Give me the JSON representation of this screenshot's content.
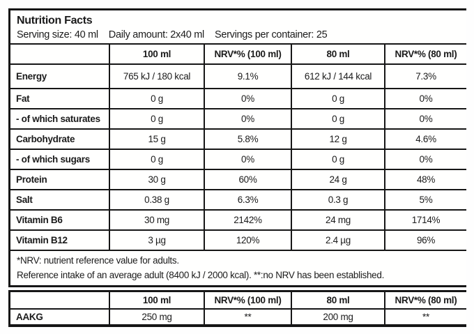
{
  "header": {
    "title": "Nutrition Facts",
    "serving_size": "Serving size: 40 ml",
    "daily_amount": "Daily amount: 2x40 ml",
    "servings_per_container": "Servings per container: 25"
  },
  "main_table": {
    "columns": [
      "",
      "100 ml",
      "NRV*% (100 ml)",
      "80 ml",
      "NRV*% (80 ml)"
    ],
    "rows": [
      {
        "label": "Energy",
        "values": [
          "765 kJ / 180 kcal",
          "9.1%",
          "612 kJ / 144 kcal",
          "7.3%"
        ]
      },
      {
        "label": "Fat",
        "values": [
          "0 g",
          "0%",
          "0 g",
          "0%"
        ]
      },
      {
        "label": "- of which saturates",
        "values": [
          "0 g",
          "0%",
          "0 g",
          "0%"
        ]
      },
      {
        "label": "Carbohydrate",
        "values": [
          "15 g",
          "5.8%",
          "12 g",
          "4.6%"
        ]
      },
      {
        "label": "- of which sugars",
        "values": [
          "0 g",
          "0%",
          "0 g",
          "0%"
        ]
      },
      {
        "label": "Protein",
        "values": [
          "30 g",
          "60%",
          "24 g",
          "48%"
        ]
      },
      {
        "label": "Salt",
        "values": [
          "0.38 g",
          "6.3%",
          "0.3 g",
          "5%"
        ]
      },
      {
        "label": "Vitamin B6",
        "values": [
          "30 mg",
          "2142%",
          "24 mg",
          "1714%"
        ]
      },
      {
        "label": "Vitamin B12",
        "values": [
          "3 µg",
          "120%",
          "2.4 µg",
          "96%"
        ]
      }
    ],
    "footnote_line1": "*NRV: nutrient reference value for adults.",
    "footnote_line2": "Reference intake of an average adult (8400 kJ / 2000 kcal). **:no NRV has been established."
  },
  "supplement_table": {
    "columns": [
      "",
      "100 ml",
      "NRV*% (100 ml)",
      "80 ml",
      "NRV*% (80 ml)"
    ],
    "rows": [
      {
        "label": "AAKG",
        "values": [
          "250 mg",
          "**",
          "200 mg",
          "**"
        ]
      }
    ]
  },
  "colors": {
    "border": "#161616",
    "text": "#1b1b1b",
    "background": "#ffffff"
  }
}
